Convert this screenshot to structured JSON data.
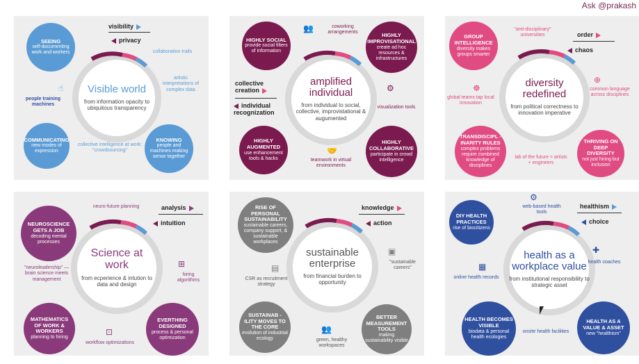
{
  "header": {
    "ask": "Ask @prakash"
  },
  "colors": {
    "blue": "#5b9bd5",
    "maroon": "#7b1a4f",
    "pink": "#e04b82",
    "purple": "#8a3a7a",
    "gray": "#7f7f7f",
    "navy": "#2f4f9f",
    "ring": "#d9d9d9"
  },
  "cards": {
    "visible": {
      "title": "Visible world",
      "subtitle": "from information opacity to ubiquitous transparency",
      "toggle_top": "visibility",
      "toggle_bottom": "privacy",
      "b1_h": "SEEING",
      "b1_t": "self-documenting work and workers",
      "b2_h": "COMMUNICATING",
      "b2_t": "new modes of expression",
      "b3_h": "KNOWING",
      "b3_t": "people and machines making sense together",
      "l1": "collaboration trails",
      "l2": "artistic interpretations of complex data",
      "l3": "people training machines",
      "l4": "collective intelligence at work: \"crowdsourcing\""
    },
    "amplified": {
      "title": "amplified individual",
      "subtitle": "from individual to social, collective, improvistational & augumented",
      "toggle_top": "collective creation",
      "toggle_bottom": "individual recognization",
      "b1_h": "HIGHLY SOCIAL",
      "b1_t": "provide social filters of information",
      "b2_h": "HIGHLY IMPROVISATIONAL",
      "b2_t": "create ad hoc resources & infrastructures",
      "b3_h": "HIGHLY AUGMENTED",
      "b3_t": "use enhancement tools & hacks",
      "b4_h": "HIGHLY COLLABORATIVE",
      "b4_t": "participate in crowd intelligence",
      "l1": "coworking arrangements",
      "l2": "visualization tools",
      "l3": "teamwork in virtual environments"
    },
    "diversity": {
      "title": "diversity redefined",
      "subtitle": "from political correctness to innovation imperative",
      "toggle_top": "order",
      "toggle_bottom": "chaos",
      "b1_h": "GROUP INTELLIGENCE",
      "b1_t": "diversity makes groups smarter",
      "b2_h": "TRANSDISCIPL -INARITY RULES",
      "b2_t": "complex problems require combined knowledge of disciplines",
      "b3_h": "THRIVING ON DEEP DIVERSITY",
      "b3_t": "not just hiring but inclusion",
      "l1": "\"anti-disciplinary\" universities",
      "l2": "global teams tap local innovation",
      "l3": "common language across disciplines",
      "l4": "lab of the future = artists + engineers"
    },
    "science": {
      "title": "Science at work",
      "subtitle": "from ecperience & intution to data and design",
      "toggle_top": "analysis",
      "toggle_bottom": "intuition",
      "b1_h": "NEUROSCIENCE GETS A JOB",
      "b1_t": "decoding mental processes",
      "b2_h": "MATHEMATICS OF WORK & WORKERS",
      "b2_t": "planning to hiring",
      "b3_h": "EVERTHING DESIGNED",
      "b3_t": "process & personal optimization",
      "l1": "neuro-future planning",
      "l2": "\"neuroleadership\" —brain science meets management",
      "l3": "hiring algorithms",
      "l4": "workflow optimizations"
    },
    "sustainable": {
      "title": "sustainable enterprise",
      "subtitle": "from financial burden to opportunity",
      "toggle_top": "knowledge",
      "toggle_bottom": "action",
      "b1_h": "RISE OF PERSONAL SUSTAINABILITY",
      "b1_t": "sustainable careers, company support, & sustainable workplaces",
      "b2_h": "SUSTAINAB -ILITY MOVES TO THE CORE",
      "b2_t": "evolution of industrial ecology",
      "b3_h": "BETTER MEASUREMENT TOOLS",
      "b3_t": "making sustainability visible",
      "l1": "\"sustainable careers\"",
      "l2": "CSR as recruitment strategy",
      "l3": "green, healthy workspaces"
    },
    "health": {
      "title": "health as a workplace value",
      "subtitle": "from institutional responsibility to strategic asset",
      "toggle_top": "healthism",
      "toggle_bottom": "choice",
      "b1_h": "DIY HEALTH PRACTICES",
      "b1_t": "rise of biocitizens",
      "b2_h": "HEALTH BECOMES VISIBLE",
      "b2_t": "biodata & personal health ecologies",
      "b3_h": "HEALTH AS A VALUE & ASSET",
      "b3_t": "new \"healthism\"",
      "l1": "web-based health tools",
      "l2": "health coaches",
      "l3": "online health records",
      "l4": "onsite health facilities"
    }
  }
}
